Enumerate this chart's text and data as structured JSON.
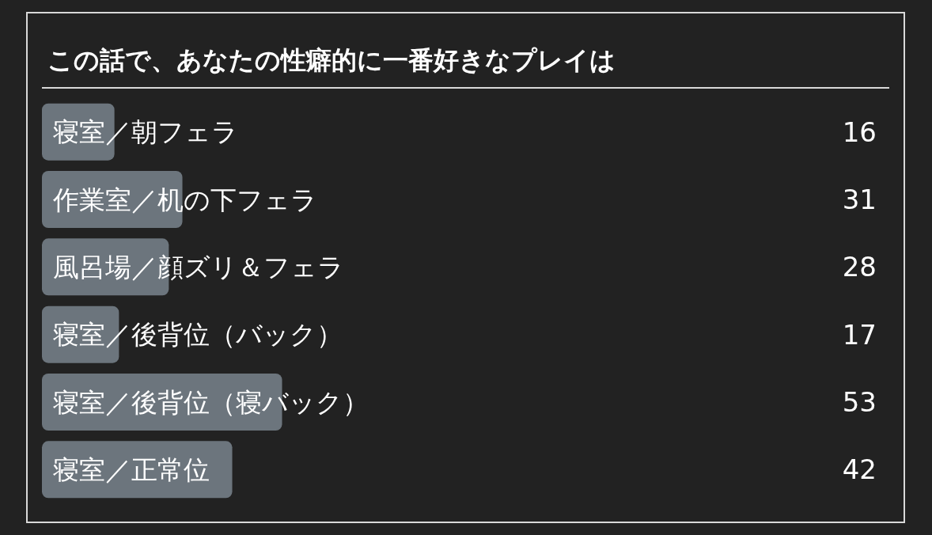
{
  "chart_data": {
    "type": "bar",
    "orientation": "horizontal",
    "title": "この話で、あなたの性癖的に一番好きなプレイは",
    "categories": [
      "寝室／朝フェラ",
      "作業室／机の下フェラ",
      "風呂場／顔ズリ＆フェラ",
      "寝室／後背位（バック）",
      "寝室／後背位（寝バック）",
      "寝室／正常位"
    ],
    "values": [
      16,
      31,
      28,
      17,
      53,
      42
    ],
    "color": "#6c757d",
    "data_labels": true,
    "tick_labels": "y"
  }
}
